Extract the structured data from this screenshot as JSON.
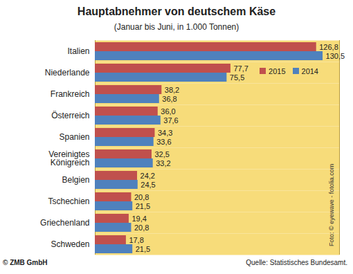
{
  "chart_data": {
    "type": "bar",
    "title": "Hauptabnehmer von deutschem Käse",
    "subtitle": "(Januar bis Juni, in 1.000 Tonnen)",
    "orientation": "horizontal",
    "stacked": false,
    "grid": false,
    "data_labels": true,
    "tick_labels": "y",
    "legend": "top-right",
    "categories": [
      "Italien",
      "Niederlande",
      "Frankreich",
      "Österreich",
      "Spanien",
      "Vereinigtes Königreich",
      "Belgien",
      "Tschechien",
      "Griechenland",
      "Schweden"
    ],
    "series": [
      {
        "name": "2015",
        "color": "#c0504d",
        "values": [
          126.8,
          77.7,
          38.2,
          36.0,
          34.3,
          32.5,
          24.2,
          20.8,
          19.4,
          17.8
        ],
        "value_labels": [
          "126,8",
          "77,7",
          "38,2",
          "36,0",
          "34,3",
          "32,5",
          "24,2",
          "20,8",
          "19,4",
          "17,8"
        ]
      },
      {
        "name": "2014",
        "color": "#4f81bd",
        "values": [
          130.5,
          75.5,
          36.8,
          37.6,
          33.6,
          33.2,
          24.5,
          21.5,
          20.8,
          21.5
        ],
        "value_labels": [
          "130,5",
          "75,5",
          "36,8",
          "37,6",
          "33,6",
          "33,2",
          "24,5",
          "21,5",
          "20,8",
          "21,5"
        ]
      }
    ],
    "xlim": [
      0,
      140
    ],
    "annotations": [
      "Foto: © eyewave - fotolia.com"
    ],
    "copyright": "© ZMB GmbH",
    "source": "Quelle: Statistisches Bundesamt."
  }
}
